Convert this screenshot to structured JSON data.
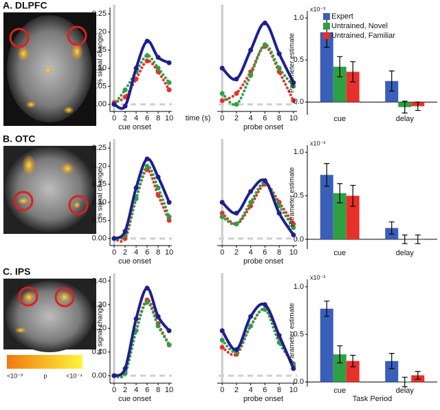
{
  "panel_labels": [
    "A. DLPFC",
    "B. OTC",
    "C. IPS"
  ],
  "colorbar": {
    "low": "<10⁻³",
    "mid": "p",
    "high": "<10⁻⁴"
  },
  "chart_data": [
    {
      "type": "line",
      "ylabel": "% signal change",
      "xlabel": "time (s)",
      "ylim": [
        -0.012,
        0.26
      ],
      "yticks": [
        {
          "value": 0,
          "label": "0.00"
        },
        0.05,
        {
          "value": 0.1,
          "label": "0.10"
        },
        0.15,
        {
          "value": 0.2,
          "label": "0.20"
        },
        0.25
      ],
      "xlim": [
        -0.5,
        10.5
      ],
      "xticks": [
        0,
        2,
        4,
        6,
        8,
        10
      ],
      "x": [
        0,
        2,
        4,
        6,
        8,
        10
      ],
      "segments": [
        {
          "label": "cue onset",
          "series": [
            {
              "color": "#1f1f8f",
              "dashed": false,
              "values": [
                0.0,
                -0.005,
                0.1,
                0.175,
                0.13,
                0.115
              ]
            },
            {
              "color": "#2ea043",
              "dashed": true,
              "values": [
                0.0,
                0.04,
                0.09,
                0.135,
                0.1,
                0.06
              ]
            },
            {
              "color": "#e8302a",
              "dashed": true,
              "values": [
                0.005,
                0.02,
                0.07,
                0.12,
                0.09,
                0.04
              ]
            }
          ]
        },
        {
          "label": "probe onset",
          "series": [
            {
              "color": "#1f1f8f",
              "dashed": false,
              "values": [
                0.1,
                0.07,
                0.15,
                0.225,
                0.14,
                0.06
              ]
            },
            {
              "color": "#2ea043",
              "dashed": true,
              "values": [
                0.03,
                0.0,
                0.08,
                0.165,
                0.1,
                0.05
              ]
            },
            {
              "color": "#e8302a",
              "dashed": true,
              "values": [
                0.01,
                0.03,
                0.09,
                0.16,
                0.09,
                0.01
              ]
            }
          ]
        }
      ]
    },
    {
      "type": "bar",
      "ylabel": "Parameter estimate",
      "multiplier": "x10⁻³",
      "legend": "top-right",
      "categories": [
        "cue",
        "delay"
      ],
      "ylim": [
        -0.12,
        1.05
      ],
      "yticks": [
        {
          "value": 0,
          "label": "0.0"
        },
        0.5,
        {
          "value": 1,
          "label": "1.0"
        }
      ],
      "series": [
        {
          "name": "Expert",
          "color": "#3a5fb8",
          "values": [
            0.83,
            0.25
          ],
          "errors": [
            0.18,
            0.12
          ]
        },
        {
          "name": "Untrained, Novel",
          "color": "#2ea043",
          "values": [
            0.42,
            -0.06
          ],
          "errors": [
            0.12,
            0.07
          ]
        },
        {
          "name": "Untrained, Familiar",
          "color": "#e8302a",
          "values": [
            0.36,
            -0.05
          ],
          "errors": [
            0.12,
            0.05
          ]
        }
      ]
    },
    {
      "type": "line",
      "ylabel": "% signal change",
      "ylim": [
        -0.012,
        0.26
      ],
      "yticks": [
        {
          "value": 0,
          "label": "0.00"
        },
        0.05,
        {
          "value": 0.1,
          "label": "0.10"
        },
        0.15,
        {
          "value": 0.2,
          "label": "0.20"
        },
        0.25
      ],
      "xlim": [
        -0.5,
        10.5
      ],
      "xticks": [
        0,
        2,
        4,
        6,
        8,
        10
      ],
      "x": [
        0,
        2,
        4,
        6,
        8,
        10
      ],
      "segments": [
        {
          "label": "cue onset",
          "series": [
            {
              "color": "#1f1f8f",
              "dashed": false,
              "values": [
                0.0,
                0.02,
                0.14,
                0.22,
                0.17,
                0.1
              ]
            },
            {
              "color": "#2ea043",
              "dashed": true,
              "values": [
                0.0,
                0.01,
                0.11,
                0.2,
                0.14,
                0.06
              ]
            },
            {
              "color": "#e8302a",
              "dashed": true,
              "values": [
                0.0,
                0.0,
                0.11,
                0.19,
                0.12,
                0.05
              ]
            }
          ]
        },
        {
          "label": "probe onset",
          "series": [
            {
              "color": "#1f1f8f",
              "dashed": false,
              "values": [
                0.1,
                0.07,
                0.13,
                0.16,
                0.07,
                0.01
              ]
            },
            {
              "color": "#2ea043",
              "dashed": true,
              "values": [
                0.06,
                0.04,
                0.1,
                0.155,
                0.09,
                0.03
              ]
            },
            {
              "color": "#e8302a",
              "dashed": true,
              "values": [
                0.07,
                0.04,
                0.09,
                0.15,
                0.1,
                0.04
              ]
            }
          ]
        }
      ]
    },
    {
      "type": "bar",
      "ylabel": "Parameter estimate",
      "multiplier": "x10⁻³",
      "categories": [
        "cue",
        "delay"
      ],
      "ylim": [
        -0.08,
        1.05
      ],
      "yticks": [
        {
          "value": 0,
          "label": "0.0"
        },
        0.5,
        {
          "value": 1,
          "label": "1.0"
        }
      ],
      "series": [
        {
          "color": "#3a5fb8",
          "values": [
            0.74,
            0.13
          ],
          "errors": [
            0.13,
            0.07
          ]
        },
        {
          "color": "#2ea043",
          "values": [
            0.53,
            0.0
          ],
          "errors": [
            0.11,
            0.05
          ]
        },
        {
          "color": "#e8302a",
          "values": [
            0.5,
            0.0
          ],
          "errors": [
            0.12,
            0.05
          ]
        }
      ]
    },
    {
      "type": "line",
      "ylabel": "% signal change",
      "ylim": [
        -0.02,
        0.41
      ],
      "yticks": [
        {
          "value": 0,
          "label": "0.00"
        },
        {
          "value": 0.1,
          "label": "0.10"
        },
        {
          "value": 0.2,
          "label": "0.20"
        },
        {
          "value": 0.3,
          "label": "0.30"
        },
        {
          "value": 0.4,
          "label": "0.40"
        }
      ],
      "xlim": [
        -0.5,
        10.5
      ],
      "xticks": [
        0,
        2,
        4,
        6,
        8,
        10
      ],
      "x": [
        0,
        2,
        4,
        6,
        8,
        10
      ],
      "segments": [
        {
          "label": "cue onset",
          "series": [
            {
              "color": "#1f1f8f",
              "dashed": false,
              "values": [
                0.0,
                0.03,
                0.24,
                0.37,
                0.25,
                0.19
              ]
            },
            {
              "color": "#2ea043",
              "dashed": true,
              "values": [
                0.0,
                0.01,
                0.19,
                0.31,
                0.21,
                0.13
              ]
            },
            {
              "color": "#e8302a",
              "dashed": true,
              "values": [
                0.0,
                0.01,
                0.19,
                0.32,
                0.22,
                0.13
              ]
            }
          ]
        },
        {
          "label": "probe onset",
          "series": [
            {
              "color": "#1f1f8f",
              "dashed": false,
              "values": [
                0.19,
                0.11,
                0.25,
                0.3,
                0.17,
                0.03
              ]
            },
            {
              "color": "#2ea043",
              "dashed": true,
              "values": [
                0.15,
                0.1,
                0.21,
                0.28,
                0.14,
                0.05
              ]
            },
            {
              "color": "#e8302a",
              "dashed": true,
              "values": [
                0.12,
                0.09,
                0.21,
                0.28,
                0.16,
                0.04
              ]
            }
          ]
        }
      ]
    },
    {
      "type": "bar",
      "ylabel": "Parameter estimate",
      "multiplier": "x10⁻³",
      "xlabel": "Task Period",
      "categories": [
        "cue",
        "delay"
      ],
      "ylim": [
        -0.02,
        1.05
      ],
      "yticks": [
        {
          "value": 0,
          "label": "0.0"
        },
        0.5,
        {
          "value": 1,
          "label": "1.0"
        }
      ],
      "series": [
        {
          "color": "#3a5fb8",
          "values": [
            0.77,
            0.22
          ],
          "errors": [
            0.08,
            0.08
          ]
        },
        {
          "color": "#2ea043",
          "values": [
            0.29,
            0.0
          ],
          "errors": [
            0.09,
            0.05
          ]
        },
        {
          "color": "#e8302a",
          "values": [
            0.22,
            0.07
          ],
          "errors": [
            0.06,
            0.04
          ]
        }
      ]
    }
  ]
}
